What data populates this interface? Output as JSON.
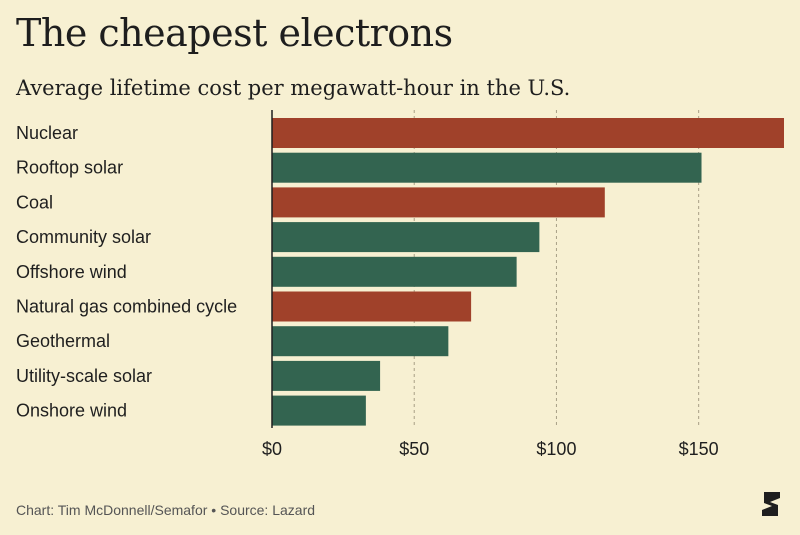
{
  "header": {
    "title": "The cheapest electrons",
    "subtitle": "Average lifetime cost per megawatt-hour in the U.S."
  },
  "footer": {
    "credit": "Chart: Tim McDonnell/Semafor • Source: Lazard"
  },
  "logo": {
    "icon": "semafor-s-logo"
  },
  "colors": {
    "background": "#f7f0d2",
    "highlight": "#a0412a",
    "default": "#336450",
    "gridline": "#a89f86",
    "axis": "#1f1f1f"
  },
  "chart_data": {
    "type": "bar",
    "orientation": "horizontal",
    "categories": [
      "Nuclear",
      "Rooftop solar",
      "Coal",
      "Community solar",
      "Offshore wind",
      "Natural gas combined cycle",
      "Geothermal",
      "Utility-scale solar",
      "Onshore wind"
    ],
    "values": [
      180,
      151,
      117,
      94,
      86,
      70,
      62,
      38,
      33
    ],
    "highlighted": [
      true,
      false,
      true,
      false,
      false,
      true,
      false,
      false,
      false
    ],
    "xlim": [
      0,
      180
    ],
    "xticks": [
      0,
      50,
      100,
      150
    ],
    "xtick_labels": [
      "$0",
      "$50",
      "$100",
      "$150"
    ],
    "grid": "vertical dashed",
    "title": "The cheapest electrons",
    "subtitle": "Average lifetime cost per megawatt-hour in the U.S.",
    "xlabel": "",
    "ylabel": ""
  }
}
